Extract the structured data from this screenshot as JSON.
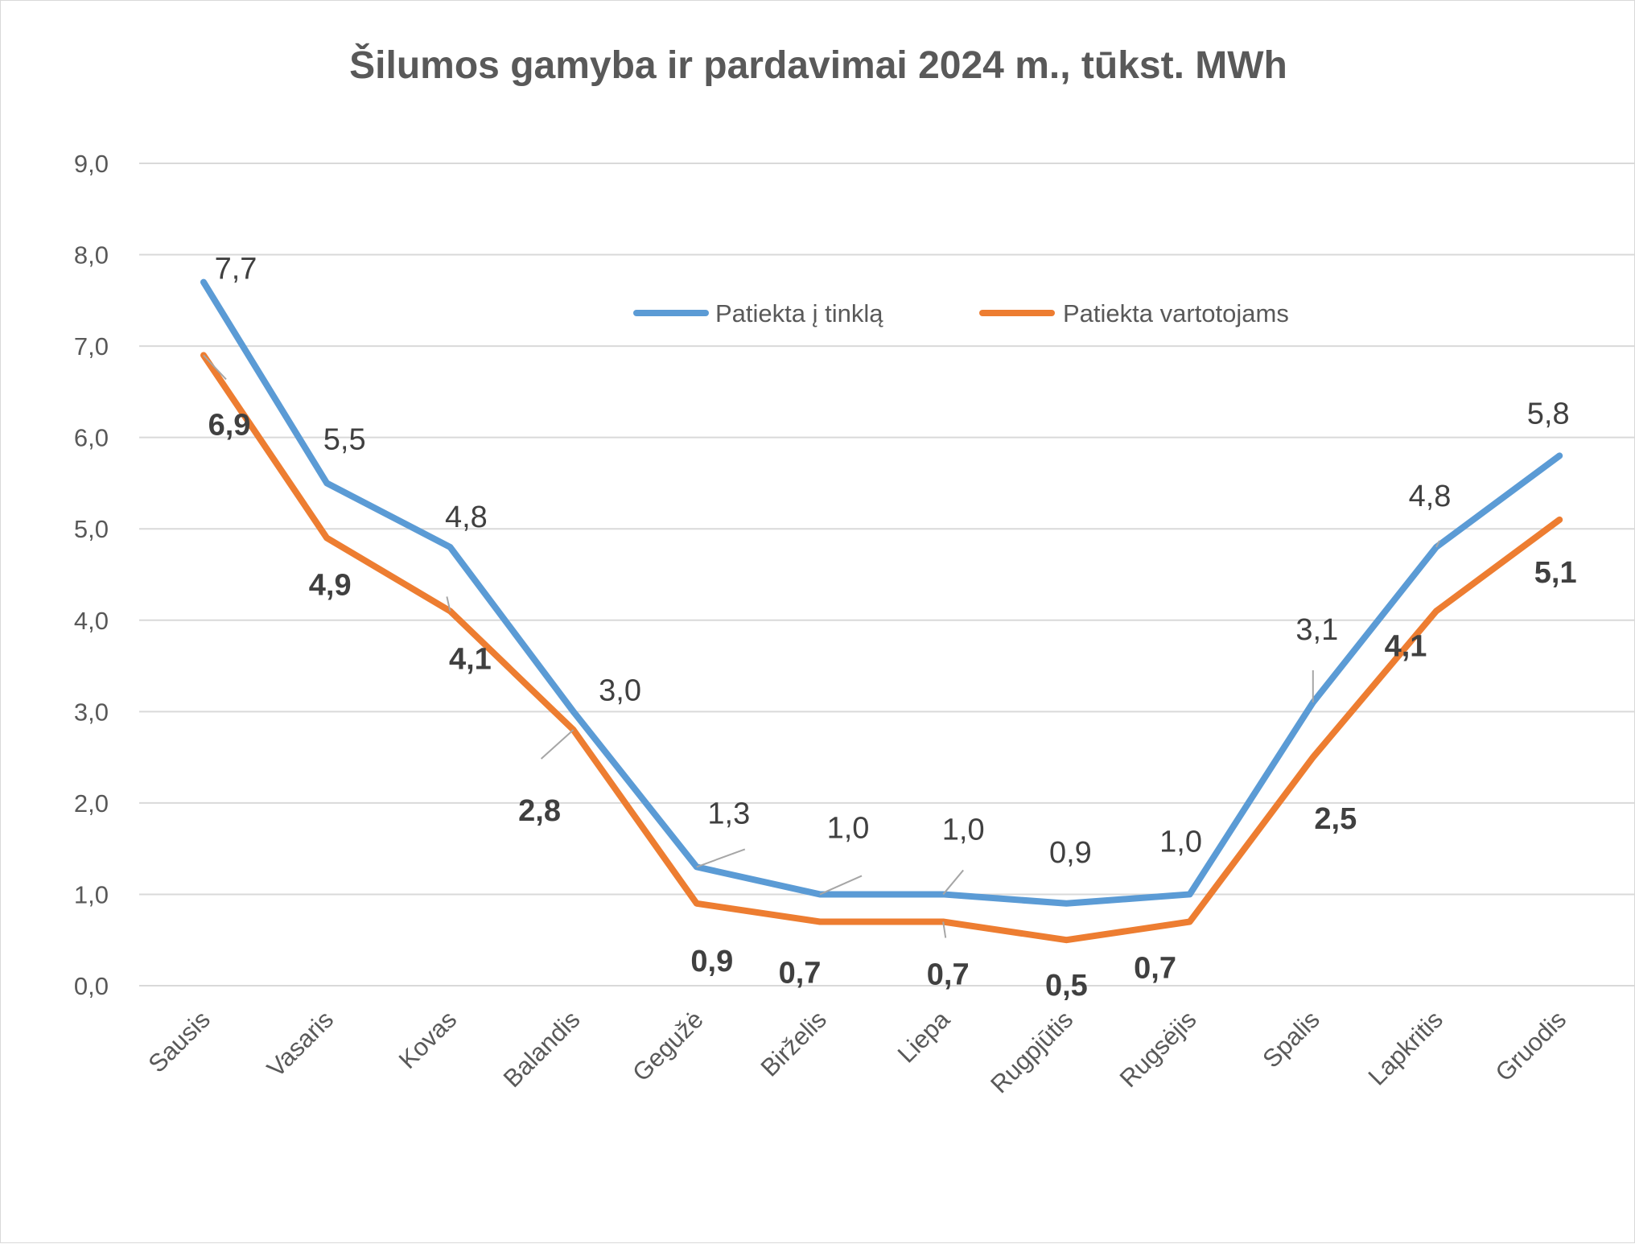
{
  "chart_data": {
    "type": "line",
    "title": "Šilumos gamyba ir pardavimai 2024 m., tūkst. MWh",
    "xlabel": "",
    "ylabel": "",
    "categories": [
      "Sausis",
      "Vasaris",
      "Kovas",
      "Balandis",
      "Gegužė",
      "Birželis",
      "Liepa",
      "Rugpjūtis",
      "Rugsėjis",
      "Spalis",
      "Lapkritis",
      "Gruodis"
    ],
    "ylim": [
      0,
      9
    ],
    "yticks": [
      "0,0",
      "1,0",
      "2,0",
      "3,0",
      "4,0",
      "5,0",
      "6,0",
      "7,0",
      "8,0",
      "9,0"
    ],
    "grid": true,
    "legend_position": "top-right",
    "series": [
      {
        "name": "Patiekta į tinklą",
        "color": "#5b9bd5",
        "values": [
          7.7,
          5.5,
          4.8,
          3.0,
          1.3,
          1.0,
          1.0,
          0.9,
          1.0,
          3.1,
          4.8,
          5.8
        ],
        "labels": [
          "7,7",
          "5,5",
          "4,8",
          "3,0",
          "1,3",
          "1,0",
          "1,0",
          "0,9",
          "1,0",
          "3,1",
          "4,8",
          "5,8"
        ],
        "label_style": "normal"
      },
      {
        "name": "Patiekta vartotojams",
        "color": "#ed7d31",
        "values": [
          6.9,
          4.9,
          4.1,
          2.8,
          0.9,
          0.7,
          0.7,
          0.5,
          0.7,
          2.5,
          4.1,
          5.1
        ],
        "labels": [
          "6,9",
          "4,9",
          "4,1",
          "2,8",
          "0,9",
          "0,7",
          "0,7",
          "0,5",
          "0,7",
          "2,5",
          "4,1",
          "5,1"
        ],
        "label_style": "bold"
      }
    ]
  }
}
